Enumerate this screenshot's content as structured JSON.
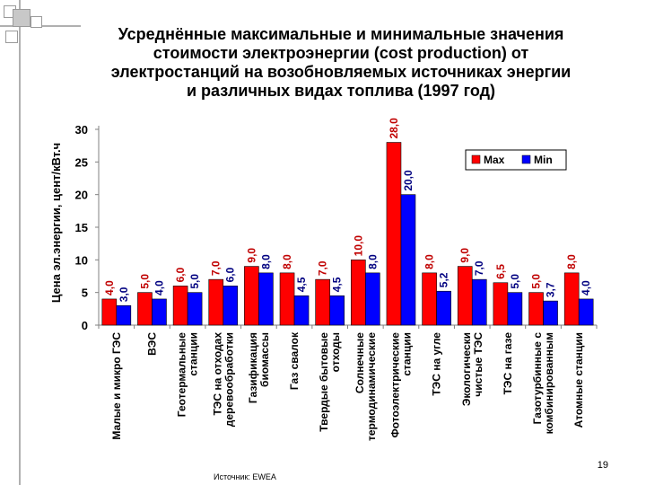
{
  "slide": {
    "title_lines": [
      "Усреднённые максимальные и минимальные значения",
      "стоимости электроэнергии (cost production) от",
      "электростанций на возобновляемых источниках энергии",
      "и различных видах топлива (1997 год)"
    ],
    "source": "Источник: EWEA",
    "page_number": "19"
  },
  "colors": {
    "max": "#ff0000",
    "min": "#0000ff",
    "axis": "#808080",
    "text": "#000000"
  },
  "chart_data": {
    "type": "bar",
    "title": "",
    "ylabel": "Цена эл.энергии, цент/кВт.ч",
    "xlabel": "",
    "ylim": [
      0,
      30
    ],
    "yticks": [
      0,
      5,
      10,
      15,
      20,
      25,
      30
    ],
    "grid": false,
    "legend_position": "top-right",
    "categories": [
      [
        "Малые и микро ГЭС"
      ],
      [
        "ВЭС"
      ],
      [
        "Геотермальные",
        "станции"
      ],
      [
        "ТЭС на отходах",
        "деревообработки"
      ],
      [
        "Газификация",
        "биомассы"
      ],
      [
        "Газ свалок"
      ],
      [
        "Твердые бытовые",
        "отходы"
      ],
      [
        "Солнечные",
        "термодинамические"
      ],
      [
        "Фотоэлектрические",
        "станции"
      ],
      [
        "ТЭС на угле"
      ],
      [
        "Экологически",
        "чистые ТЭС"
      ],
      [
        "ТЭС на газе"
      ],
      [
        "Газотурбинные с",
        "комбинированным"
      ],
      [
        "Атомные станции"
      ]
    ],
    "series": [
      {
        "name": "Max",
        "values": [
          4.0,
          5.0,
          6.0,
          7.0,
          9.0,
          8.0,
          7.0,
          10.0,
          28.0,
          8.0,
          9.0,
          6.5,
          5.0,
          8.0
        ],
        "labels": [
          "4,0",
          "5,0",
          "6,0",
          "7,0",
          "9,0",
          "8,0",
          "7,0",
          "10,0",
          "28,0",
          "8,0",
          "9,0",
          "6,5",
          "5,0",
          "8,0"
        ]
      },
      {
        "name": "Min",
        "values": [
          3.0,
          4.0,
          5.0,
          6.0,
          8.0,
          4.5,
          4.5,
          8.0,
          20.0,
          5.2,
          7.0,
          5.0,
          3.7,
          4.0
        ],
        "labels": [
          "3,0",
          "4,0",
          "5,0",
          "6,0",
          "8,0",
          "4,5",
          "4,5",
          "8,0",
          "20,0",
          "5,2",
          "7,0",
          "5,0",
          "3,7",
          "4,0"
        ]
      }
    ]
  }
}
